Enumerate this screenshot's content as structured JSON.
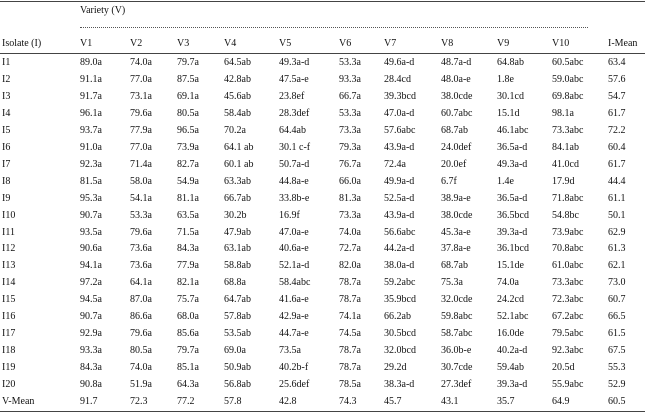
{
  "table": {
    "group_header": "Variety (V)",
    "columns": [
      "Isolate (I)",
      "V1",
      "V2",
      "V3",
      "V4",
      "V5",
      "V6",
      "V7",
      "V8",
      "V9",
      "V10",
      "I-Mean"
    ],
    "rows": [
      [
        "I1",
        "89.0a",
        "74.0a",
        "79.7a",
        "64.5ab",
        "49.3a-d",
        "53.3a",
        "49.6a-d",
        "48.7a-d",
        "64.8ab",
        "60.5abc",
        "63.4"
      ],
      [
        "I2",
        "91.1a",
        "77.0a",
        "87.5a",
        "42.8ab",
        "47.5a-e",
        "93.3a",
        "28.4cd",
        "48.0a-e",
        "1.8e",
        "59.0abc",
        "57.6"
      ],
      [
        "I3",
        "91.7a",
        "73.1a",
        "69.1a",
        "45.6ab",
        "23.8ef",
        "66.7a",
        "39.3bcd",
        "38.0cde",
        "30.1cd",
        "69.8abc",
        "54.7"
      ],
      [
        "I4",
        "96.1a",
        "79.6a",
        "80.5a",
        "58.4ab",
        "28.3def",
        "53.3a",
        "47.0a-d",
        "60.7abc",
        "15.1d",
        "98.1a",
        "61.7"
      ],
      [
        "I5",
        "93.7a",
        "77.9a",
        "96.5a",
        "70.2a",
        "64.4ab",
        "73.3a",
        "57.6abc",
        "68.7ab",
        "46.1abc",
        "73.3abc",
        "72.2"
      ],
      [
        "I6",
        "91.0a",
        "77.0a",
        "73.9a",
        "64.1 ab",
        "30.1 c-f",
        "79.3a",
        "43.9a-d",
        "24.0def",
        "36.5a-d",
        "84.1ab",
        "60.4"
      ],
      [
        "I7",
        "92.3a",
        "71.4a",
        "82.7a",
        "60.1 ab",
        "50.7a-d",
        "76.7a",
        "72.4a",
        "20.0ef",
        "49.3a-d",
        "41.0cd",
        "61.7"
      ],
      [
        "I8",
        "81.5a",
        "58.0a",
        "54.9a",
        "63.3ab",
        "44.8a-e",
        "66.0a",
        "49.9a-d",
        "6.7f",
        "1.4e",
        "17.9d",
        "44.4"
      ],
      [
        "I9",
        "95.3a",
        "54.1a",
        "81.1a",
        "66.7ab",
        "33.8b-e",
        "81.3a",
        "52.5a-d",
        "38.9a-e",
        "36.5a-d",
        "71.8abc",
        "61.1"
      ],
      [
        "I10",
        "90.7a",
        "53.3a",
        "63.5a",
        "30.2b",
        "16.9f",
        "73.3a",
        "43.9a-d",
        "38.0cde",
        "36.5bcd",
        "54.8bc",
        "50.1"
      ],
      [
        "I11",
        "93.5a",
        "79.6a",
        "71.5a",
        "47.9ab",
        "47.0a-e",
        "74.0a",
        "56.6abc",
        "45.3a-e",
        "39.3a-d",
        "73.9abc",
        "62.9"
      ],
      [
        "I12",
        "90.6a",
        "73.6a",
        "84.3a",
        "63.1ab",
        "40.6a-e",
        "72.7a",
        "44.2a-d",
        "37.8a-e",
        "36.1bcd",
        "70.8abc",
        "61.3"
      ],
      [
        "I13",
        "94.1a",
        "73.6a",
        "77.9a",
        "58.8ab",
        "52.1a-d",
        "82.0a",
        "38.0a-d",
        "68.7ab",
        "15.1de",
        "61.0abc",
        "62.1"
      ],
      [
        "I14",
        "97.2a",
        "64.1a",
        "82.1a",
        "68.8a",
        "58.4abc",
        "78.7a",
        "59.2abc",
        "75.3a",
        "74.0a",
        "73.3abc",
        "73.0"
      ],
      [
        "I15",
        "94.5a",
        "87.0a",
        "75.7a",
        "64.7ab",
        "41.6a-e",
        "78.7a",
        "35.9bcd",
        "32.0cde",
        "24.2cd",
        "72.3abc",
        "60.7"
      ],
      [
        "I16",
        "90.7a",
        "86.6a",
        "68.0a",
        "57.8ab",
        "42.9a-e",
        "74.1a",
        "66.2ab",
        "59.8abc",
        "52.1abc",
        "67.2abc",
        "66.5"
      ],
      [
        "I17",
        "92.9a",
        "79.6a",
        "85.6a",
        "53.5ab",
        "44.7a-e",
        "74.5a",
        "30.5bcd",
        "58.7abc",
        "16.0de",
        "79.5abc",
        "61.5"
      ],
      [
        "I18",
        "93.3a",
        "80.5a",
        "79.7a",
        "69.0a",
        "73.5a",
        "78.7a",
        "32.0bcd",
        "36.0b-e",
        "40.2a-d",
        "92.3abc",
        "67.5"
      ],
      [
        "I19",
        "84.3a",
        "74.0a",
        "85.1a",
        "50.9ab",
        "40.2b-f",
        "78.7a",
        "29.2d",
        "30.7cde",
        "59.4ab",
        "20.5d",
        "55.3"
      ],
      [
        "I20",
        "90.8a",
        "51.9a",
        "64.3a",
        "56.8ab",
        "25.6def",
        "78.5a",
        "38.3a-d",
        "27.3def",
        "39.3a-d",
        "55.9abc",
        "52.9"
      ],
      [
        "V-Mean",
        "91.7",
        "72.3",
        "77.2",
        "57.8",
        "42.8",
        "74.3",
        "45.7",
        "43.1",
        "35.7",
        "64.9",
        "60.5"
      ]
    ]
  }
}
